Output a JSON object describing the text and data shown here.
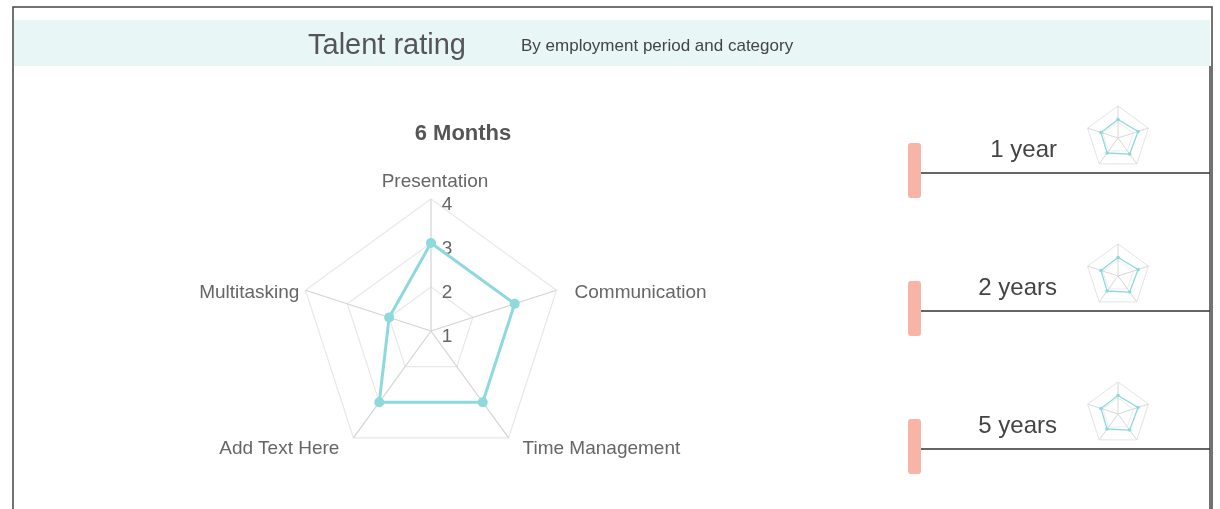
{
  "chart_data": [
    {
      "type": "other",
      "title": "Talent rating",
      "subtitle": "By employment period and category"
    },
    {
      "type": "radar",
      "title": "6 Months",
      "categories": [
        "Presentation",
        "Communication",
        "Time Management",
        "Add Text Here",
        "Multitasking"
      ],
      "series": [
        {
          "color": "#8dd9dc",
          "values": [
            3,
            3,
            3,
            3,
            2
          ]
        }
      ],
      "ylim": [
        1,
        4
      ],
      "yticks": [
        1,
        2,
        3,
        4
      ],
      "grid": true,
      "marker": "circle"
    },
    {
      "type": "other",
      "annotations": [
        "1 year",
        "2 years",
        "5 years"
      ]
    }
  ]
}
